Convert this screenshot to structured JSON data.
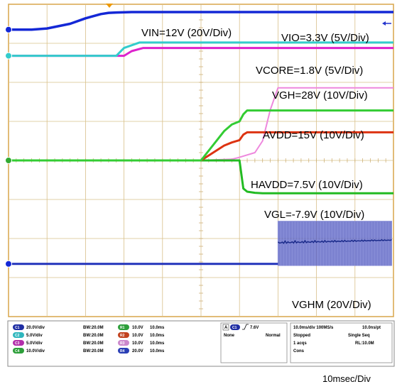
{
  "chart_data": {
    "type": "line",
    "title": "",
    "xlabel": "",
    "ylabel": "",
    "timebase_label": "10msec/Div",
    "xlim": [
      0,
      100
    ],
    "ylim": [
      -4,
      4
    ],
    "grid": true,
    "x_units": "ms",
    "y_units": "div",
    "series": [
      {
        "name": "VIN=12V (20V/Div)",
        "key": "vin",
        "color": "#1428d6",
        "x": [
          0,
          6,
          10,
          16,
          20,
          24,
          26,
          28,
          32,
          36,
          40,
          60,
          80,
          100
        ],
        "y": [
          3.35,
          3.35,
          3.38,
          3.5,
          3.64,
          3.75,
          3.78,
          3.79,
          3.8,
          3.8,
          3.8,
          3.8,
          3.8,
          3.8
        ]
      },
      {
        "name": "VIO=3.3V (5V/Div)",
        "key": "vio",
        "color": "#33cccc",
        "x": [
          0,
          22,
          28,
          30,
          34,
          100
        ],
        "y": [
          2.68,
          2.68,
          2.68,
          2.88,
          3.02,
          3.02
        ]
      },
      {
        "name": "VCORE=1.8V (5V/Div)",
        "key": "vcore",
        "color": "#dd22cc",
        "x": [
          0,
          22,
          30,
          32,
          35,
          100
        ],
        "y": [
          2.68,
          2.68,
          2.68,
          2.8,
          2.88,
          2.88
        ]
      },
      {
        "name": "VGH=28V (10V/Div)",
        "key": "vgh",
        "color": "#ee88dd",
        "x": [
          0,
          50,
          55,
          58,
          60,
          64,
          66,
          68,
          70,
          100
        ],
        "y": [
          0,
          0,
          0.02,
          0.03,
          0.08,
          0.2,
          0.5,
          1.3,
          1.86,
          1.86
        ]
      },
      {
        "name": "AVDD=15V (10V/Div)",
        "key": "avdd",
        "color": "#33cc33",
        "x": [
          0,
          50,
          56,
          58,
          60,
          61,
          62,
          100
        ],
        "y": [
          0,
          0,
          0.75,
          0.92,
          1.0,
          1.18,
          1.28,
          1.28
        ]
      },
      {
        "name": "HAVDD=7.5V (10V/Div)",
        "key": "havdd",
        "color": "#dd3311",
        "x": [
          0,
          50,
          56,
          58,
          60,
          61,
          62,
          100
        ],
        "y": [
          0,
          0,
          0.38,
          0.46,
          0.52,
          0.66,
          0.72,
          0.72
        ]
      },
      {
        "name": "VGL=-7.9V (10V/Div)",
        "key": "vgl",
        "color": "#22bb22",
        "x": [
          0,
          60,
          61,
          62,
          64,
          66,
          100
        ],
        "y": [
          0,
          0,
          -0.72,
          -0.8,
          -0.83,
          -0.84,
          -0.84
        ]
      },
      {
        "name": "VGHM (20V/Div)",
        "key": "vghm",
        "color": "#2233bb",
        "x": [
          0,
          70,
          100
        ],
        "y": [
          -2.65,
          -2.65,
          -2.65
        ],
        "burst_from": 70,
        "burst_top": -1.55,
        "burst_bottom": -2.7
      }
    ]
  },
  "panel": {
    "channels": [
      {
        "chip": "C1",
        "scale": "20.0V/div",
        "bw": "BW:20.0M",
        "color": "#1f2ea3"
      },
      {
        "chip": "C2",
        "scale": "5.0V/div",
        "bw": "BW:20.0M",
        "color": "#2fb6bd"
      },
      {
        "chip": "C3",
        "scale": "5.0V/div",
        "bw": "BW:20.0M",
        "color": "#b22faa"
      },
      {
        "chip": "C4",
        "scale": "10.0V/div",
        "bw": "BW:20.0M",
        "color": "#2d9f3a"
      }
    ],
    "refs": [
      {
        "chip": "R1",
        "scale": "10.0V",
        "time": "10.0ms",
        "color": "#2d9f3a"
      },
      {
        "chip": "R2",
        "scale": "10.0V",
        "time": "10.0ms",
        "color": "#c2421e"
      },
      {
        "chip": "R3",
        "scale": "10.0V",
        "time": "10.0ms",
        "color": "#cc88cc"
      },
      {
        "chip": "R4",
        "scale": "20.0V",
        "time": "10.0ms",
        "color": "#2a3fb5"
      }
    ],
    "trigger": {
      "chip": "A",
      "src_chip": "C1",
      "level": "7.6V",
      "coupling": "None",
      "mode": "Normal"
    },
    "acq": {
      "rate": "10.0ms/div 100MS/s",
      "res": "10.0ns/pt",
      "state": "Stopped",
      "seq": "Single Seq",
      "acqs": "1 acqs",
      "rl": "RL:10.0M",
      "cons": "Cons"
    }
  }
}
